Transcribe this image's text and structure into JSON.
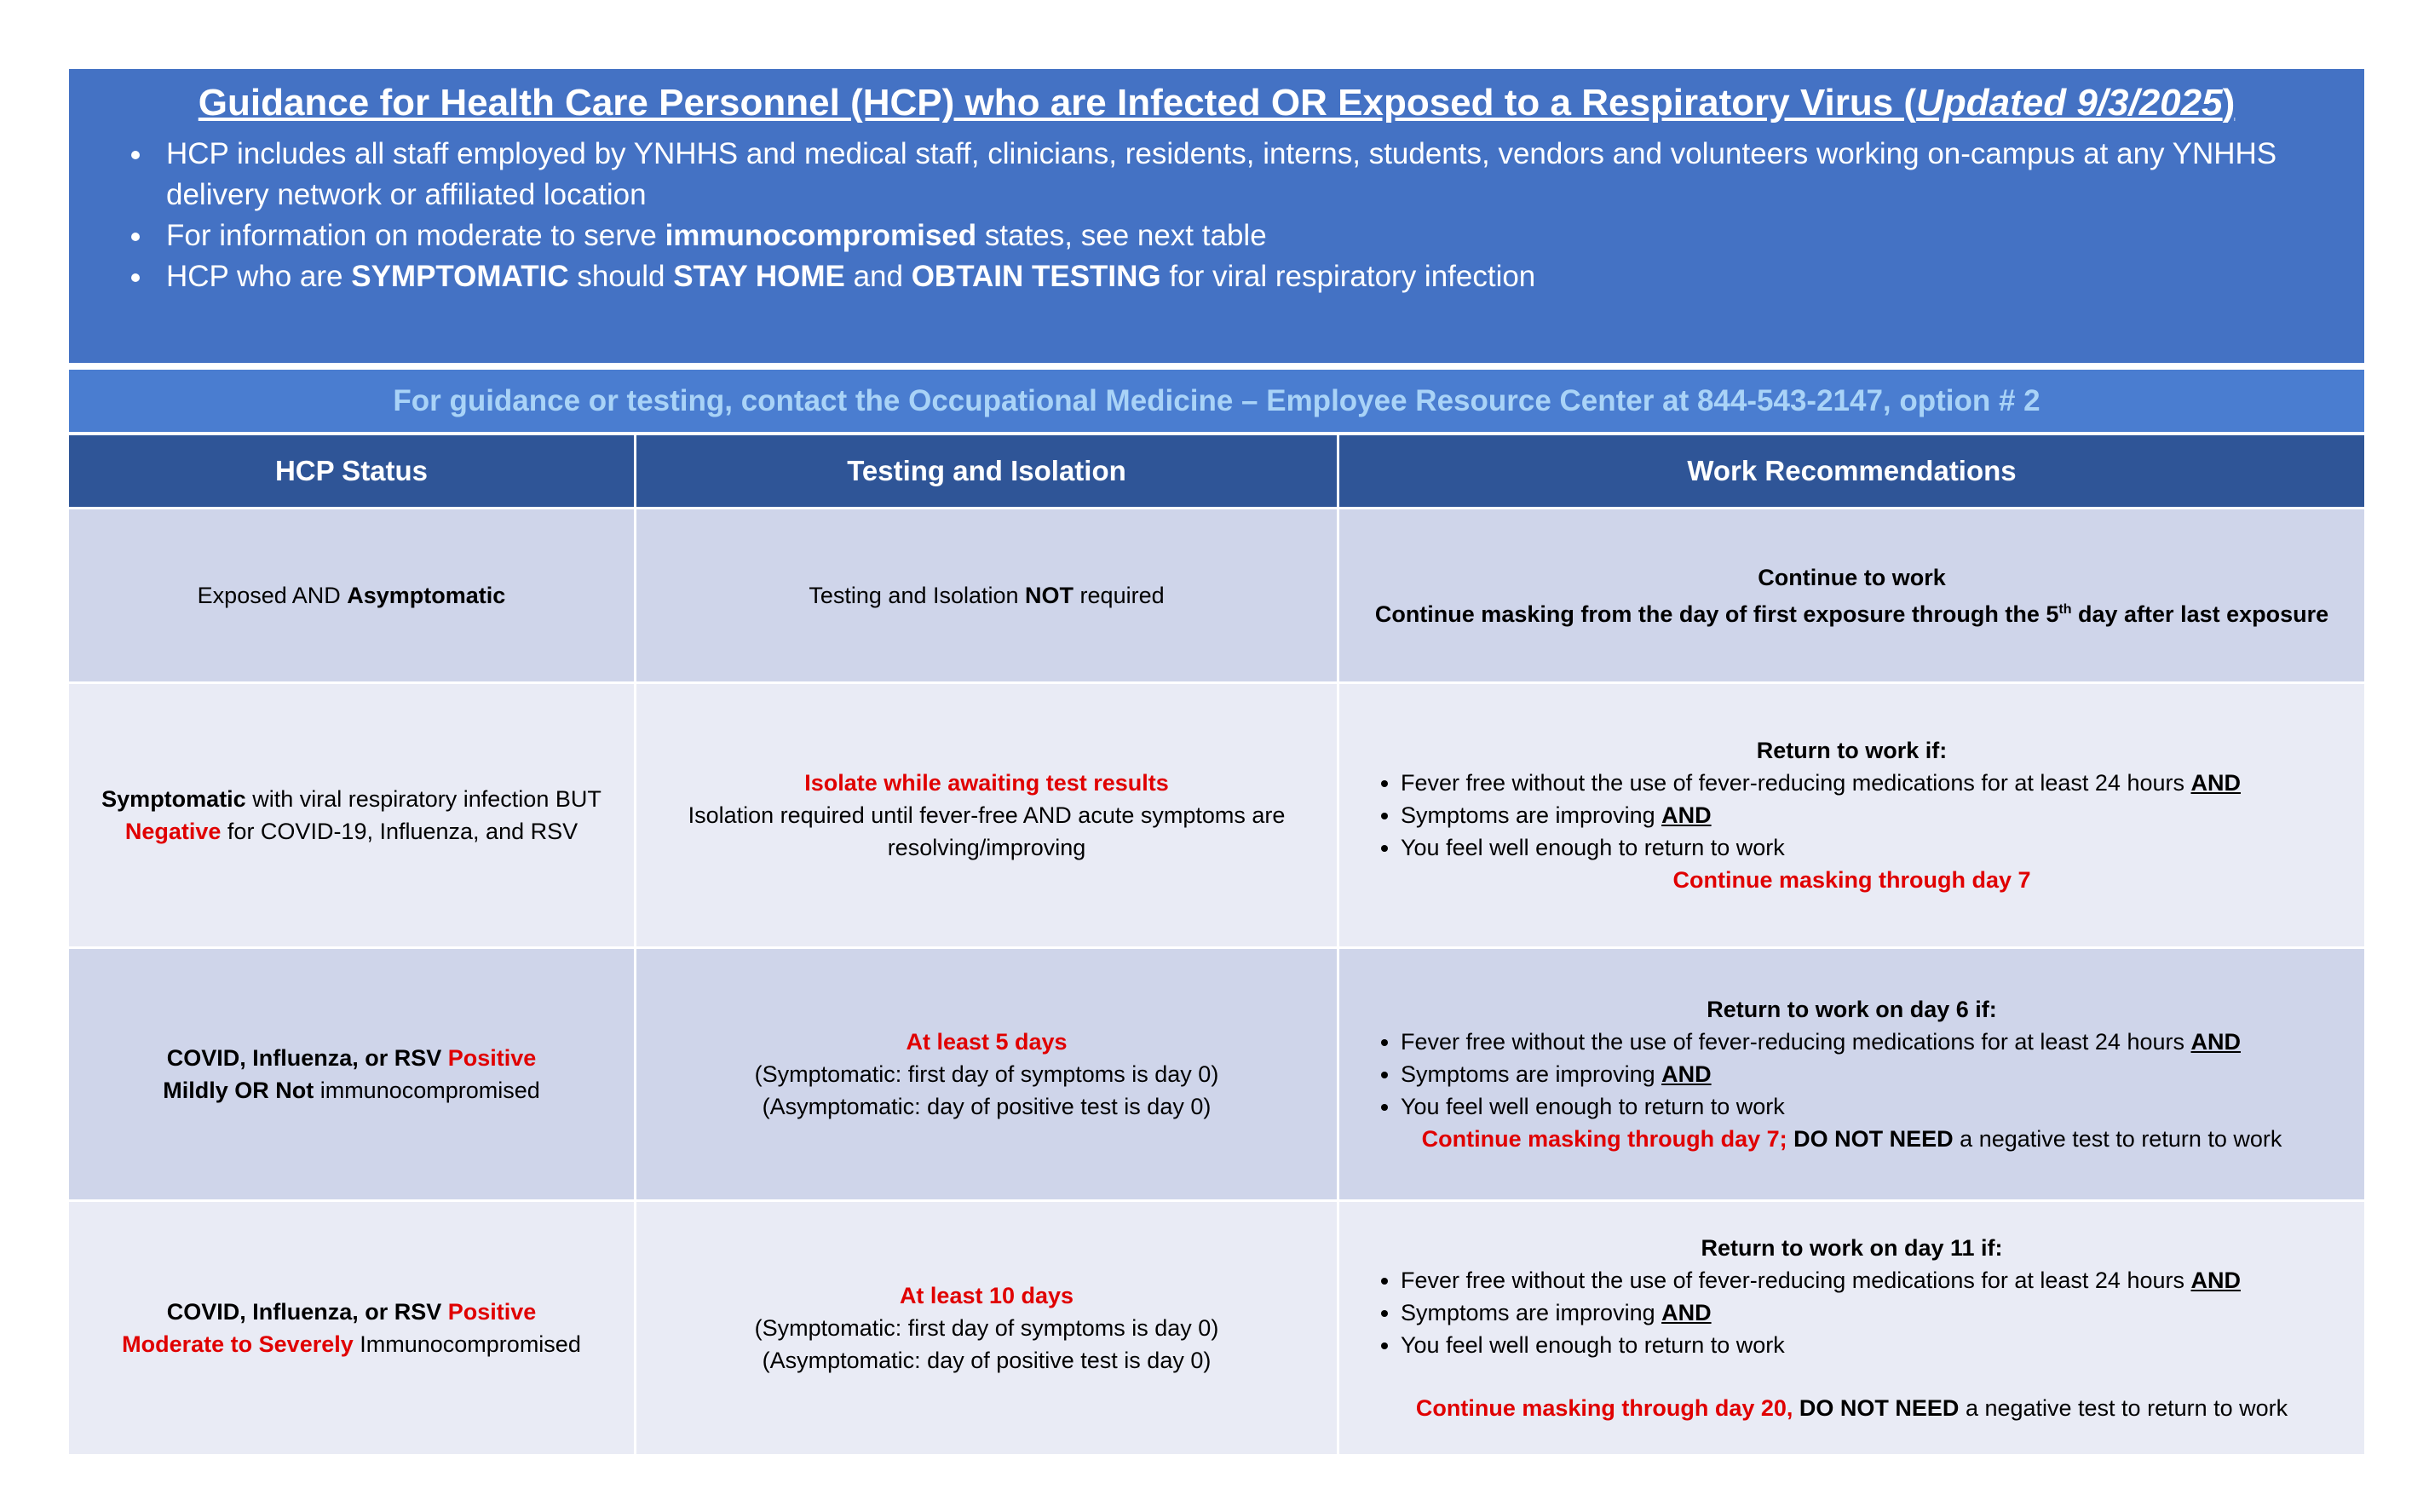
{
  "header": {
    "title": "Guidance for Health Care Personnel (HCP) who are Infected OR Exposed to a Respiratory Virus (",
    "title_updated": "Updated 9/3/2025",
    "title_end": ")",
    "bullets": [
      [
        "HCP includes all staff employed by YNHHS and medical staff, clinicians, residents, interns, students, vendors and volunteers working on-campus at any YNHHS delivery network or affiliated location"
      ],
      [
        "For information on moderate to serve ",
        "immunocompromised",
        " states, see next table"
      ],
      [
        "HCP who are ",
        "SYMPTOMATIC",
        " should ",
        "STAY HOME",
        " and ",
        "OBTAIN TESTING",
        " for viral respiratory infection"
      ]
    ]
  },
  "contact": "For guidance or testing, contact the Occupational Medicine – Employee Resource Center at 844-543-2147, option # 2",
  "table": {
    "columns": [
      "HCP Status",
      "Testing and Isolation",
      "Work Recommendations"
    ],
    "rows": [
      [
        [
          [
            "Exposed AND ",
            "Asymptomatic"
          ]
        ],
        [
          [
            "Testing and Isolation ",
            "NOT",
            " required"
          ]
        ],
        [
          [
            "Continue to work"
          ],
          [
            "Continue masking from the day of first exposure through the 5",
            "th",
            " day after last exposure"
          ]
        ]
      ],
      [
        [
          [
            "Symptomatic",
            " with viral respiratory infection BUT ",
            "Negative",
            " for COVID-19, Influenza, and RSV"
          ]
        ],
        [
          [
            "Isolate while awaiting test results"
          ],
          [
            "Isolation required until fever-free AND acute symptoms are resolving/improving"
          ]
        ],
        {
          "lead": [
            "Return to work if:"
          ],
          "bullets": [
            [
              "Fever free without the use of fever-reducing medications for at least 24 hours ",
              "AND"
            ],
            [
              "Symptoms are improving ",
              "AND"
            ],
            [
              "You feel well enough to return to work"
            ]
          ],
          "note": [
            "Continue masking through day 7"
          ]
        }
      ],
      [
        [
          [
            "COVID, Influenza, or RSV ",
            "Positive"
          ],
          [
            "Mildly OR Not",
            " immunocompromised"
          ]
        ],
        [
          [
            "At least 5 days"
          ],
          [
            "(Symptomatic: first day of symptoms is day 0)"
          ],
          [
            "(Asymptomatic: day of positive test is day 0)"
          ]
        ],
        {
          "lead": [
            "Return to work on day 6 if:"
          ],
          "bullets": [
            [
              "Fever free without the use of fever-reducing medications for at least 24 hours ",
              "AND"
            ],
            [
              "Symptoms are improving ",
              "AND"
            ],
            [
              "You feel well enough to return to work"
            ]
          ],
          "note": [
            "Continue masking through day 7; ",
            "DO NOT NEED",
            " a negative test to return to work"
          ]
        }
      ],
      [
        [
          [
            "COVID, Influenza, or RSV ",
            "Positive"
          ],
          [
            "Moderate to Severely",
            " Immunocompromised"
          ]
        ],
        [
          [
            "At least 10 days"
          ],
          [
            "(Symptomatic: first day of symptoms is day 0)"
          ],
          [
            "(Asymptomatic: day of positive test is day 0)"
          ]
        ],
        {
          "lead": [
            "Return to work on day 11 if:"
          ],
          "bullets": [
            [
              "Fever free without the use of fever-reducing medications for at least 24 hours ",
              "AND"
            ],
            [
              "Symptoms are improving ",
              "AND"
            ],
            [
              "You feel well enough to return to work"
            ]
          ],
          "note": [
            "Continue masking through day 20, ",
            "DO NOT NEED",
            " a negative test to return to work"
          ]
        }
      ]
    ]
  }
}
